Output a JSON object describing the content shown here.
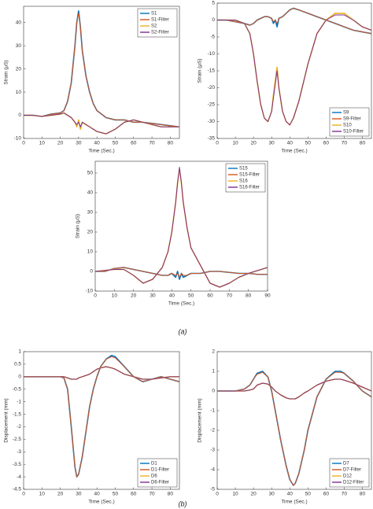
{
  "captions": [
    "(a)",
    "(b)"
  ],
  "chart_data": [
    {
      "type": "line",
      "xlabel": "Time (Sec.)",
      "ylabel": "Strain (μS)",
      "legend": "northeast",
      "xlim": [
        0,
        85
      ],
      "ylim": [
        -10,
        47
      ],
      "xticks": [
        0,
        10,
        20,
        30,
        40,
        50,
        60,
        70,
        80
      ],
      "yticks": [
        -10,
        0,
        10,
        20,
        30,
        40
      ],
      "x": [
        0,
        5,
        10,
        15,
        20,
        22,
        24,
        26,
        28,
        29,
        30,
        31,
        32,
        34,
        36,
        38,
        40,
        45,
        50,
        55,
        60,
        65,
        70,
        75,
        80,
        85
      ],
      "series": [
        {
          "name": "S1",
          "color": "#0072bd",
          "values": [
            0,
            0,
            -0.5,
            0.5,
            1,
            2,
            6,
            14,
            30,
            40,
            45,
            38,
            28,
            17,
            10,
            5,
            2,
            -1,
            -2,
            -2,
            -3,
            -3,
            -3.5,
            -4,
            -4.5,
            -5
          ]
        },
        {
          "name": "S1-Filter",
          "color": "#d95319",
          "values": [
            0,
            0,
            -0.5,
            0.5,
            1,
            2,
            6,
            14,
            30,
            40,
            44,
            38,
            28,
            17,
            10,
            5,
            2,
            -1,
            -2,
            -2,
            -3,
            -3,
            -3.5,
            -4,
            -4.5,
            -5
          ]
        },
        {
          "name": "S2",
          "color": "#edb120",
          "values": [
            0,
            0,
            -0.5,
            0,
            0.5,
            1,
            0,
            -1,
            -3,
            -5,
            -2,
            -6,
            -3,
            -4,
            -5,
            -6,
            -7,
            -8,
            -6,
            -3,
            -2,
            -3,
            -4,
            -5,
            -5,
            -5
          ]
        },
        {
          "name": "S2-Filter",
          "color": "#7e2f8e",
          "values": [
            0,
            0,
            -0.5,
            0,
            0.5,
            1,
            0,
            -1,
            -3,
            -4,
            -3,
            -5,
            -3,
            -4,
            -5,
            -6,
            -7,
            -8,
            -6,
            -3,
            -2,
            -3,
            -4,
            -5,
            -5,
            -5
          ]
        }
      ]
    },
    {
      "type": "line",
      "xlabel": "Time (Sec.)",
      "ylabel": "Strain (μS)",
      "legend": "southeast",
      "xlim": [
        0,
        85
      ],
      "ylim": [
        -35,
        5
      ],
      "xticks": [
        0,
        10,
        20,
        30,
        40,
        50,
        60,
        70,
        80
      ],
      "yticks": [
        -35,
        -30,
        -25,
        -20,
        -15,
        -10,
        -5,
        0,
        5
      ],
      "x": [
        0,
        5,
        10,
        15,
        18,
        20,
        22,
        24,
        26,
        28,
        30,
        31,
        32,
        33,
        34,
        36,
        38,
        40,
        42,
        45,
        50,
        55,
        60,
        65,
        70,
        75,
        80,
        85
      ],
      "series": [
        {
          "name": "S9",
          "color": "#0072bd",
          "values": [
            0,
            0,
            -0.5,
            -1,
            -1.5,
            -1,
            0,
            0.5,
            1,
            1,
            0.5,
            -1,
            0,
            -2,
            0.5,
            1,
            2,
            3,
            3.5,
            3,
            2,
            1,
            0,
            -1,
            -2,
            -3,
            -3.5,
            -4
          ]
        },
        {
          "name": "S9-Filter",
          "color": "#d95319",
          "values": [
            0,
            0,
            -0.5,
            -1,
            -1.5,
            -1,
            0,
            0.5,
            1,
            1,
            0.5,
            -0.5,
            0,
            -1,
            0.5,
            1,
            2,
            3,
            3.5,
            3,
            2,
            1,
            0,
            -1,
            -2,
            -3,
            -3.5,
            -4
          ]
        },
        {
          "name": "S10",
          "color": "#edb120",
          "values": [
            0,
            0,
            0,
            -1,
            -4,
            -10,
            -18,
            -25,
            -29,
            -30,
            -27,
            -22,
            -18,
            -14,
            -20,
            -27,
            -30,
            -31,
            -29,
            -24,
            -13,
            -4,
            0,
            2,
            2,
            0,
            -2,
            -3
          ]
        },
        {
          "name": "S10-Filter",
          "color": "#7e2f8e",
          "values": [
            0,
            0,
            0,
            -1,
            -4,
            -10,
            -18,
            -25,
            -29,
            -30,
            -27,
            -23,
            -19,
            -15,
            -20,
            -27,
            -30,
            -31,
            -29,
            -24,
            -13,
            -4,
            0,
            1.5,
            1.5,
            0,
            -2,
            -3
          ]
        }
      ]
    },
    {
      "type": "line",
      "xlabel": "Time (Sec.)",
      "ylabel": "Strain (μS)",
      "legend": "northeast",
      "xlim": [
        0,
        90
      ],
      "ylim": [
        -10,
        56
      ],
      "xticks": [
        0,
        10,
        20,
        30,
        40,
        50,
        60,
        70,
        80,
        90
      ],
      "yticks": [
        -10,
        0,
        10,
        20,
        30,
        40,
        50
      ],
      "x": [
        0,
        5,
        10,
        15,
        20,
        25,
        30,
        35,
        38,
        40,
        42,
        43,
        44,
        45,
        46,
        48,
        50,
        55,
        60,
        65,
        70,
        75,
        80,
        85,
        90
      ],
      "series": [
        {
          "name": "S15",
          "color": "#0072bd",
          "values": [
            0,
            0,
            1.5,
            2,
            1,
            0,
            -1,
            -2,
            -2,
            -1,
            -3,
            0,
            -4,
            -1,
            -3,
            -2,
            -1,
            -1,
            0,
            0,
            -0.5,
            -1,
            -1,
            -1.5,
            -1.5
          ]
        },
        {
          "name": "S15-Filter",
          "color": "#d95319",
          "values": [
            0,
            0,
            1.5,
            2,
            1,
            0,
            -1,
            -2,
            -2,
            -1,
            -2,
            -1,
            -3,
            -1,
            -2,
            -2,
            -1,
            -1,
            0,
            0,
            -0.5,
            -1,
            -1,
            -1.5,
            -1.5
          ]
        },
        {
          "name": "S16",
          "color": "#edb120",
          "values": [
            0,
            0.5,
            1,
            1,
            -2,
            -6,
            -4,
            2,
            10,
            20,
            35,
            45,
            52,
            45,
            35,
            22,
            12,
            3,
            -6,
            -8,
            -6,
            -3,
            -1,
            0.5,
            2
          ]
        },
        {
          "name": "S16-Filter",
          "color": "#7e2f8e",
          "values": [
            0,
            0.5,
            1,
            1,
            -2,
            -6,
            -4,
            2,
            10,
            20,
            35,
            45,
            53,
            45,
            35,
            22,
            12,
            3,
            -6,
            -8,
            -6,
            -3,
            -1,
            0.5,
            2
          ]
        }
      ]
    },
    {
      "type": "line",
      "xlabel": "Time (Sec.)",
      "ylabel": "Displacement (mm)",
      "legend": "southeast",
      "xlim": [
        0,
        85
      ],
      "ylim": [
        -4.5,
        1
      ],
      "xticks": [
        0,
        10,
        20,
        30,
        40,
        50,
        60,
        70,
        80
      ],
      "yticks": [
        -4.5,
        -4,
        -3.5,
        -3,
        -2.5,
        -2,
        -1.5,
        -1,
        -0.5,
        0,
        0.5,
        1
      ],
      "x": [
        0,
        5,
        10,
        15,
        20,
        22,
        24,
        26,
        28,
        29,
        30,
        32,
        34,
        36,
        38,
        40,
        42,
        45,
        48,
        50,
        55,
        60,
        65,
        70,
        75,
        80,
        85
      ],
      "series": [
        {
          "name": "D1",
          "color": "#0072bd",
          "values": [
            0,
            0,
            0,
            0,
            0,
            -0.05,
            -0.5,
            -2,
            -3.6,
            -4,
            -3.9,
            -3.2,
            -2.2,
            -1.2,
            -0.5,
            0,
            0.4,
            0.7,
            0.85,
            0.8,
            0.4,
            0,
            -0.2,
            -0.1,
            0,
            -0.1,
            -0.2
          ]
        },
        {
          "name": "D1-Filter",
          "color": "#d95319",
          "values": [
            0,
            0,
            0,
            0,
            0,
            -0.05,
            -0.5,
            -2,
            -3.6,
            -4,
            -3.9,
            -3.2,
            -2.2,
            -1.2,
            -0.5,
            0,
            0.4,
            0.7,
            0.8,
            0.75,
            0.4,
            0,
            -0.2,
            -0.1,
            0,
            -0.1,
            -0.2
          ]
        },
        {
          "name": "D6",
          "color": "#edb120",
          "values": [
            0,
            0,
            0,
            0,
            0,
            0,
            -0.05,
            -0.1,
            -0.1,
            -0.1,
            -0.05,
            0,
            0.05,
            0.1,
            0.2,
            0.3,
            0.35,
            0.4,
            0.35,
            0.3,
            0.1,
            0,
            -0.1,
            -0.1,
            -0.05,
            0,
            0
          ]
        },
        {
          "name": "D6-Filter",
          "color": "#7e2f8e",
          "values": [
            0,
            0,
            0,
            0,
            0,
            0,
            -0.05,
            -0.1,
            -0.1,
            -0.1,
            -0.05,
            0,
            0.05,
            0.1,
            0.2,
            0.3,
            0.35,
            0.4,
            0.35,
            0.3,
            0.1,
            0,
            -0.1,
            -0.1,
            -0.05,
            0,
            0
          ]
        }
      ]
    },
    {
      "type": "line",
      "xlabel": "Time (Sec.)",
      "ylabel": "Displacement (mm)",
      "legend": "southeast",
      "xlim": [
        0,
        85
      ],
      "ylim": [
        -5,
        2
      ],
      "xticks": [
        0,
        10,
        20,
        30,
        40,
        50,
        60,
        70,
        80
      ],
      "yticks": [
        -5,
        -4,
        -3,
        -2,
        -1,
        0,
        1,
        2
      ],
      "x": [
        0,
        5,
        10,
        15,
        18,
        20,
        22,
        25,
        28,
        30,
        32,
        35,
        38,
        40,
        42,
        43,
        45,
        48,
        50,
        55,
        60,
        65,
        68,
        70,
        75,
        80,
        85
      ],
      "series": [
        {
          "name": "D7",
          "color": "#0072bd",
          "values": [
            0,
            0,
            0,
            0.1,
            0.3,
            0.6,
            0.9,
            1,
            0.7,
            0,
            -1,
            -2.5,
            -3.8,
            -4.5,
            -4.8,
            -4.7,
            -4.2,
            -3,
            -2,
            -0.3,
            0.6,
            1,
            1,
            0.9,
            0.5,
            0,
            -0.3
          ]
        },
        {
          "name": "D7-Filter",
          "color": "#d95319",
          "values": [
            0,
            0,
            0,
            0.1,
            0.3,
            0.6,
            0.85,
            0.95,
            0.7,
            0,
            -1,
            -2.5,
            -3.8,
            -4.5,
            -4.8,
            -4.7,
            -4.2,
            -3,
            -2,
            -0.3,
            0.6,
            0.95,
            0.95,
            0.9,
            0.5,
            0,
            -0.3
          ]
        },
        {
          "name": "D12",
          "color": "#edb120",
          "values": [
            0,
            0,
            0,
            0,
            0.05,
            0.1,
            0.3,
            0.4,
            0.35,
            0.2,
            0,
            -0.2,
            -0.35,
            -0.4,
            -0.4,
            -0.4,
            -0.3,
            -0.1,
            0,
            0.3,
            0.5,
            0.6,
            0.6,
            0.55,
            0.4,
            0.2,
            0
          ]
        },
        {
          "name": "D12-Filter",
          "color": "#7e2f8e",
          "values": [
            0,
            0,
            0,
            0,
            0.05,
            0.1,
            0.3,
            0.4,
            0.35,
            0.2,
            0,
            -0.2,
            -0.35,
            -0.4,
            -0.4,
            -0.4,
            -0.3,
            -0.1,
            0,
            0.3,
            0.5,
            0.6,
            0.6,
            0.55,
            0.4,
            0.2,
            0
          ]
        }
      ]
    }
  ]
}
